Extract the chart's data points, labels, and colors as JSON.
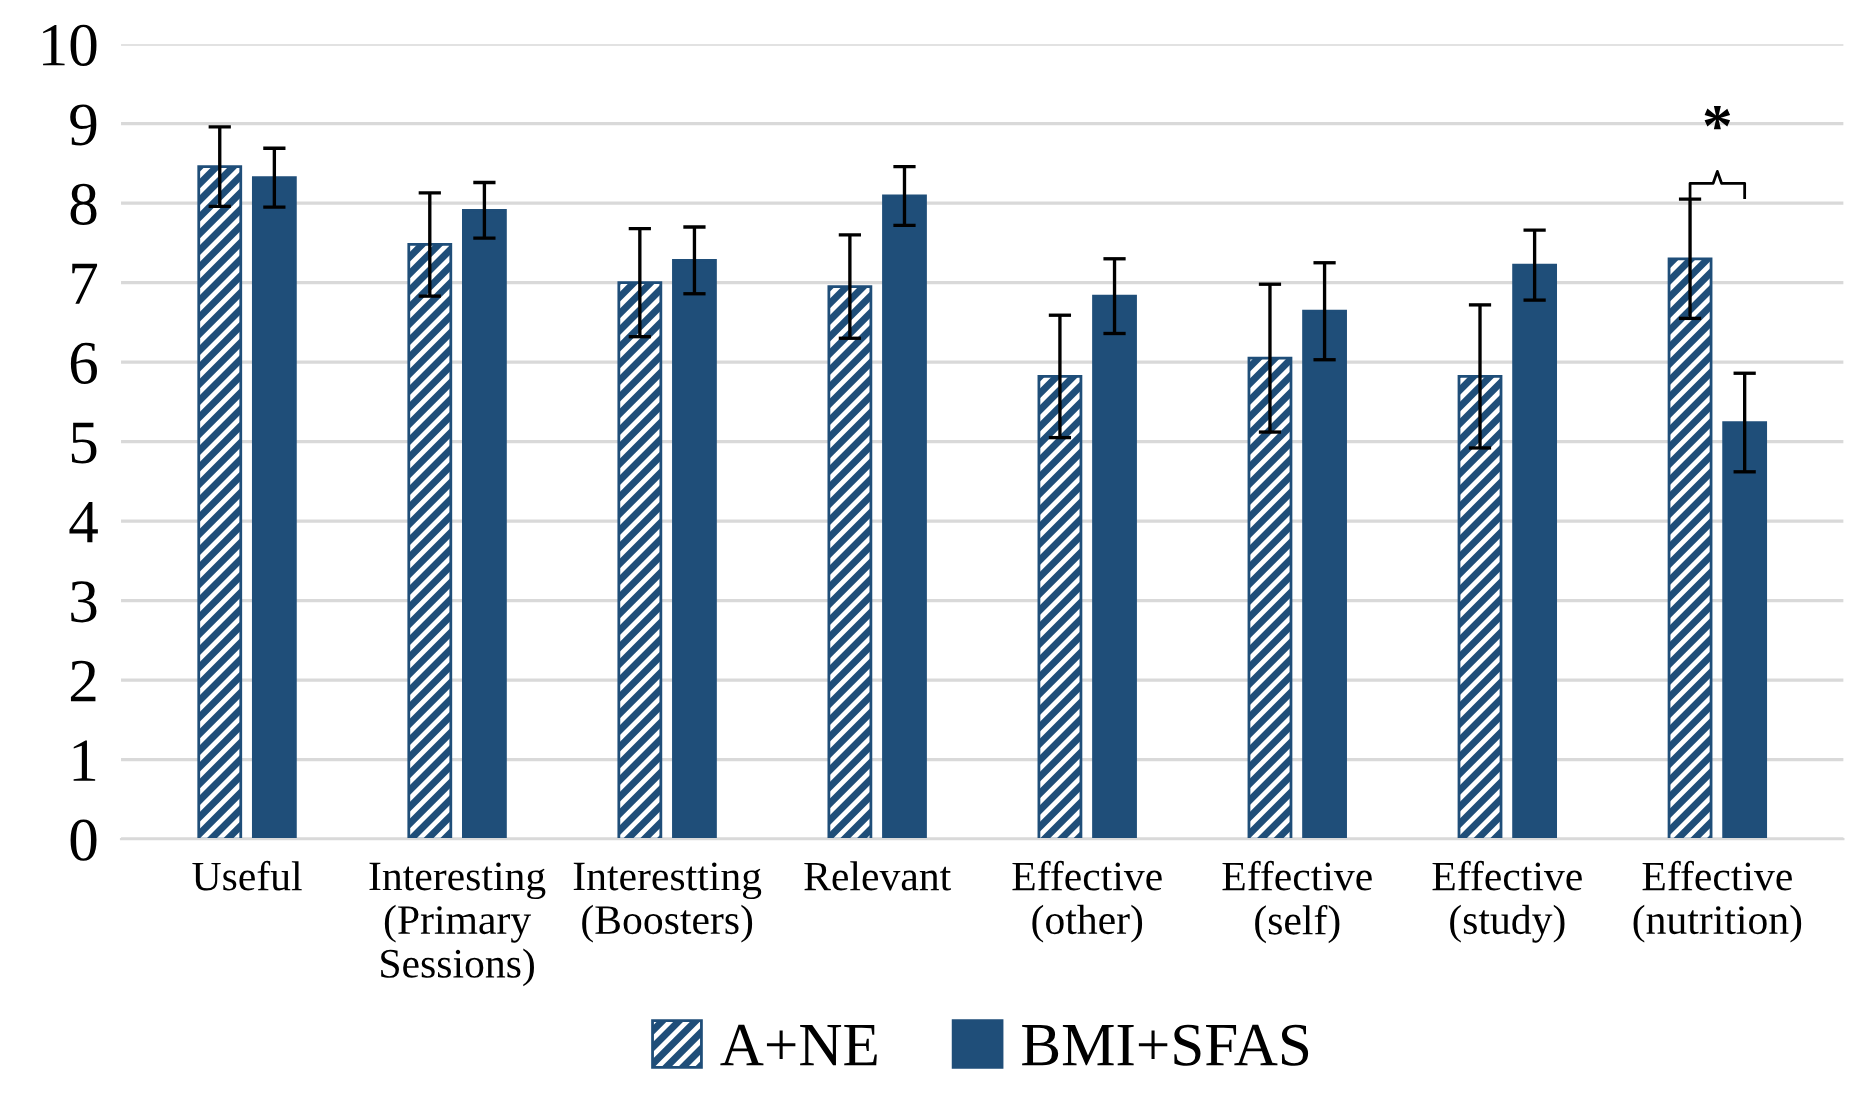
{
  "chart_data": {
    "type": "bar",
    "categories": [
      "Useful",
      "Interesting\n(Primary\nSessions)",
      "Interestting\n(Boosters)",
      "Relevant",
      "Effective\n(other)",
      "Effective\n(self)",
      "Effective\n(study)",
      "Effective\n(nutrition)"
    ],
    "series": [
      {
        "name": "A+NE",
        "color": "#1f4e79",
        "values": [
          8.46,
          7.48,
          7.0,
          6.95,
          5.82,
          6.05,
          5.82,
          7.3
        ],
        "errors": [
          0.5,
          0.65,
          0.68,
          0.65,
          0.77,
          0.93,
          0.9,
          0.75
        ]
      },
      {
        "name": "BMI+SFAS",
        "color": "#1f4e79",
        "values": [
          8.32,
          7.91,
          7.28,
          8.09,
          6.83,
          6.64,
          7.22,
          5.24
        ],
        "errors": [
          0.37,
          0.35,
          0.42,
          0.37,
          0.47,
          0.61,
          0.44,
          0.62
        ]
      }
    ],
    "ylim": [
      0,
      10
    ],
    "yticks": [
      0,
      1,
      2,
      3,
      4,
      5,
      6,
      7,
      8,
      9,
      10
    ],
    "grid": "y",
    "legend": "bottom",
    "annotations": [
      "*"
    ]
  }
}
